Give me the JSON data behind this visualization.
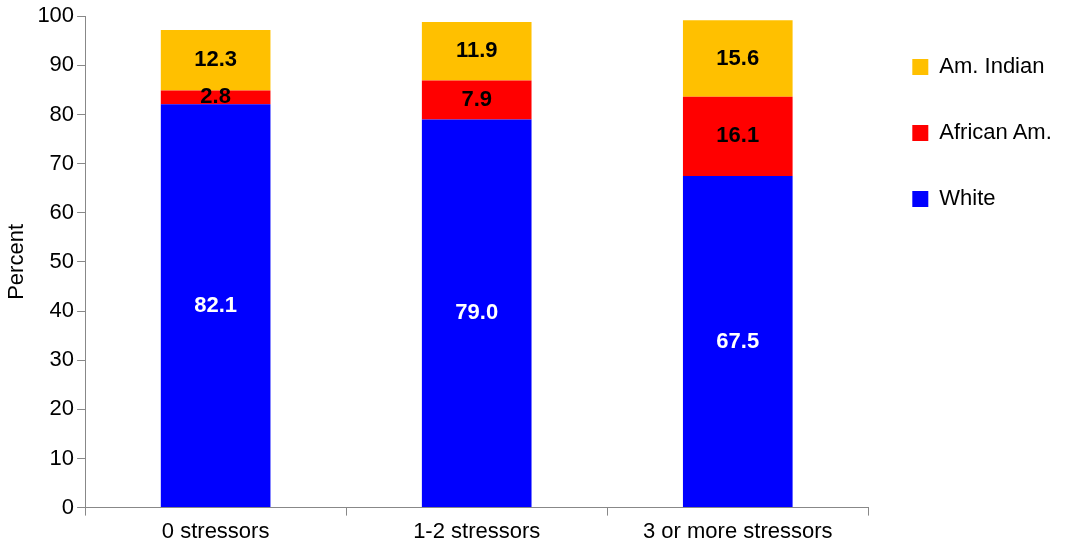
{
  "chart_data": {
    "type": "bar",
    "stacked": true,
    "ylabel": "Percent",
    "categories": [
      "0 stressors",
      "1-2 stressors",
      "3 or more stressors"
    ],
    "series": [
      {
        "name": "White",
        "color": "#0000ff",
        "values": [
          82.1,
          79.0,
          67.5
        ],
        "value_labels": [
          "82.1",
          "79.0",
          "67.5"
        ]
      },
      {
        "name": "African Am.",
        "color": "#ff0000",
        "values": [
          2.8,
          7.9,
          16.1
        ],
        "value_labels": [
          "2.8",
          "7.9",
          "16.1"
        ]
      },
      {
        "name": "Am. Indian",
        "color": "#ffc000",
        "values": [
          12.3,
          11.9,
          15.6
        ],
        "value_labels": [
          "12.3",
          "11.9",
          "15.6"
        ]
      }
    ],
    "ylim": [
      0,
      100
    ],
    "yticks": [
      0,
      10,
      20,
      30,
      40,
      50,
      60,
      70,
      80,
      90,
      100
    ],
    "grid": false,
    "legend": "right"
  }
}
